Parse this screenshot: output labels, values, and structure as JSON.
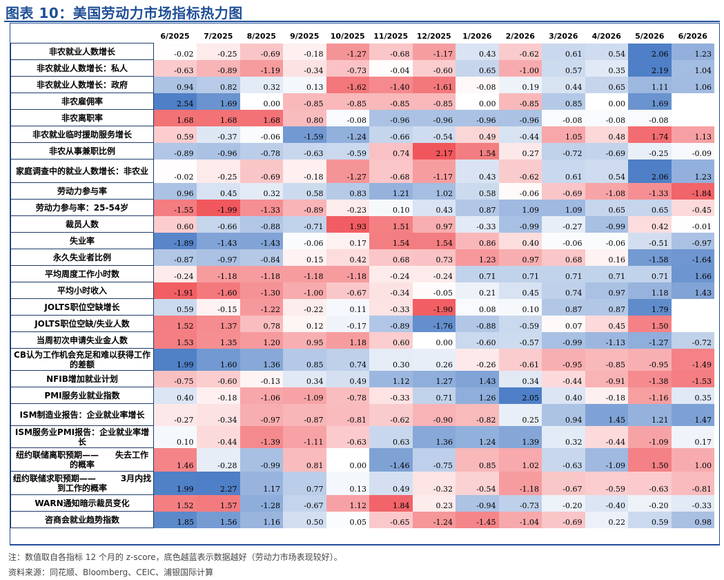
{
  "figure": {
    "title": "图表 10：美国劳动力市场指标热力图",
    "note": "注：数值取自各指标 12 个月的 z-score，底色越蓝表示数据越好（劳动力市场表现较好）。",
    "source": "资料来源：同花顺、Bloomberg、CEIC、浦银国际计算"
  },
  "colors": {
    "title": "#1f4e96",
    "good_blue": "#4f7fc6",
    "bad_red": "#f0575c",
    "neutral": "#ffffff"
  },
  "chart_data": {
    "type": "heatmap",
    "title": "美国劳动力市场指标热力图",
    "columns": [
      "6/2025",
      "7/2025",
      "8/2025",
      "9/2025",
      "10/2025",
      "11/2025",
      "12/2025",
      "1/2026",
      "2/2026",
      "3/2026",
      "4/2026",
      "5/2026",
      "6/2026"
    ],
    "rows": [
      {
        "label": "非农就业人数增长",
        "values": [
          "-0.02",
          "-0.25",
          "-0.69",
          "-0.18",
          "-1.27",
          "-0.68",
          "-1.17",
          "0.43",
          "-0.62",
          "0.61",
          "0.54",
          "2.06",
          "1.23"
        ],
        "invert": false
      },
      {
        "label": "非农就业人数增长：私人",
        "values": [
          "-0.63",
          "-0.89",
          "-1.19",
          "-0.34",
          "-0.73",
          "-0.04",
          "-0.60",
          "0.65",
          "-1.00",
          "0.57",
          "0.35",
          "2.19",
          "1.04"
        ],
        "invert": false
      },
      {
        "label": "非农就业人数增长：政府",
        "values": [
          "0.94",
          "0.82",
          "0.32",
          "0.13",
          "-1.62",
          "-1.40",
          "-1.61",
          "-0.08",
          "0.19",
          "0.44",
          "0.65",
          "1.11",
          "1.06"
        ],
        "invert": false
      },
      {
        "label": "非农雇佣率",
        "values": [
          "2.54",
          "1.69",
          "0.00",
          "-0.85",
          "-0.85",
          "-0.85",
          "-0.85",
          "0.00",
          "-0.85",
          "0.85",
          "0.00",
          "1.69",
          ""
        ],
        "invert": false
      },
      {
        "label": "非农离职率",
        "values": [
          "1.68",
          "1.68",
          "1.68",
          "0.80",
          "-0.08",
          "-0.96",
          "-0.96",
          "-0.96",
          "-0.96",
          "-0.08",
          "-0.08",
          "-0.08",
          ""
        ],
        "invert": true
      },
      {
        "label": "非农就业临时援助服务增长",
        "values": [
          "0.59",
          "-0.37",
          "-0.06",
          "-1.59",
          "-1.24",
          "-0.66",
          "-0.54",
          "0.49",
          "-0.44",
          "1.05",
          "0.48",
          "1.74",
          "1.13"
        ],
        "invert": true
      },
      {
        "label": "非农从事兼职比例",
        "values": [
          "-0.89",
          "-0.96",
          "-0.78",
          "-0.63",
          "-0.59",
          "0.74",
          "2.17",
          "1.54",
          "0.27",
          "-0.72",
          "-0.69",
          "-0.25",
          "-0.09"
        ],
        "invert": true
      },
      {
        "label": "家庭调查中的就业人数增长：非农业",
        "values": [
          "-0.02",
          "-0.25",
          "-0.69",
          "-0.18",
          "-1.27",
          "-0.68",
          "-1.17",
          "0.43",
          "-0.62",
          "0.61",
          "0.54",
          "2.06",
          "1.23"
        ],
        "invert": false
      },
      {
        "label": "劳动力参与率",
        "values": [
          "0.96",
          "0.45",
          "0.32",
          "0.58",
          "0.83",
          "1.21",
          "1.02",
          "0.58",
          "-0.06",
          "-0.69",
          "-1.08",
          "-1.33",
          "-1.84"
        ],
        "invert": false
      },
      {
        "label": "劳动力参与率：25-54岁",
        "values": [
          "-1.55",
          "-1.99",
          "-1.33",
          "-0.89",
          "-0.23",
          "0.10",
          "0.43",
          "0.87",
          "1.09",
          "1.09",
          "0.65",
          "0.65",
          "-0.45"
        ],
        "invert": false
      },
      {
        "label": "裁员人数",
        "values": [
          "0.60",
          "-0.66",
          "-0.88",
          "-0.71",
          "1.93",
          "1.51",
          "0.97",
          "-0.33",
          "-0.99",
          "-0.27",
          "-0.99",
          "0.42",
          "-0.01"
        ],
        "invert": true
      },
      {
        "label": "失业率",
        "values": [
          "-1.89",
          "-1.43",
          "-1.43",
          "-0.06",
          "0.17",
          "1.54",
          "1.54",
          "0.86",
          "0.40",
          "-0.06",
          "-0.06",
          "-0.51",
          "-0.97"
        ],
        "invert": true
      },
      {
        "label": "永久失业者比例",
        "values": [
          "-0.87",
          "-0.97",
          "-0.84",
          "0.15",
          "0.42",
          "0.68",
          "0.73",
          "1.23",
          "0.97",
          "0.68",
          "0.16",
          "-1.58",
          "-1.64"
        ],
        "invert": true
      },
      {
        "label": "平均周度工作小时数",
        "values": [
          "-0.24",
          "-1.18",
          "-1.18",
          "-1.18",
          "-1.18",
          "-0.24",
          "-0.24",
          "0.71",
          "0.71",
          "0.71",
          "0.71",
          "0.71",
          "1.66"
        ],
        "invert": false
      },
      {
        "label": "平均小时收入",
        "values": [
          "-1.91",
          "-1.60",
          "-1.30",
          "-1.00",
          "-0.67",
          "-0.34",
          "-0.05",
          "0.21",
          "0.45",
          "0.74",
          "0.97",
          "1.18",
          "1.43"
        ],
        "invert": false
      },
      {
        "label": "JOLTS职位空缺增长",
        "values": [
          "0.59",
          "-0.15",
          "-1.22",
          "-0.22",
          "0.11",
          "-0.33",
          "-1.90",
          "0.08",
          "0.10",
          "0.87",
          "0.87",
          "1.79",
          ""
        ],
        "invert": false
      },
      {
        "label": "JOLTS职位空缺/失业人数",
        "values": [
          "1.52",
          "1.37",
          "0.78",
          "0.12",
          "-0.17",
          "-0.89",
          "-1.76",
          "-0.88",
          "-0.59",
          "0.07",
          "0.45",
          "1.50",
          ""
        ],
        "invert": true
      },
      {
        "label": "当周初次申请失业金人数",
        "values": [
          "1.53",
          "1.35",
          "1.20",
          "0.95",
          "1.18",
          "0.60",
          "0.00",
          "-0.60",
          "-0.57",
          "-0.99",
          "-1.13",
          "-1.27",
          "-0.72"
        ],
        "invert": true
      },
      {
        "label": "CB认为工作机会充足和难以获得工作的差额",
        "values": [
          "1.99",
          "1.60",
          "1.36",
          "0.85",
          "0.74",
          "0.30",
          "0.26",
          "-0.26",
          "-0.61",
          "-0.95",
          "-0.85",
          "-0.95",
          "-1.49"
        ],
        "invert": false
      },
      {
        "label": "NFIB增加就业计划",
        "values": [
          "-0.75",
          "-0.60",
          "-0.13",
          "0.34",
          "0.49",
          "1.12",
          "1.27",
          "1.43",
          "0.34",
          "-0.44",
          "-0.91",
          "-1.38",
          "-1.53"
        ],
        "invert": false
      },
      {
        "label": "PMI服务业就业指数",
        "values": [
          "0.40",
          "-0.18",
          "-1.06",
          "-1.09",
          "-0.78",
          "-0.33",
          "0.71",
          "1.26",
          "2.05",
          "0.40",
          "-0.18",
          "-1.16",
          "0.35"
        ],
        "invert": false
      },
      {
        "label": "ISM制造业报告：企业就业率增长",
        "values": [
          "-0.27",
          "-0.34",
          "-0.97",
          "-0.87",
          "-0.81",
          "-0.62",
          "-0.90",
          "-0.82",
          "0.25",
          "0.94",
          "1.45",
          "1.21",
          "1.47"
        ],
        "invert": false
      },
      {
        "label": "ISM服务业PMI报告：企业就业率增长",
        "values": [
          "0.10",
          "-0.44",
          "-1.39",
          "-1.11",
          "-0.63",
          "0.63",
          "1.36",
          "1.24",
          "1.39",
          "0.32",
          "-0.44",
          "-1.09",
          "0.17"
        ],
        "invert": false
      },
      {
        "label": "纽约联储离职预期——　　失去工作的概率",
        "values": [
          "1.46",
          "-0.28",
          "-0.99",
          "0.81",
          "0.00",
          "-1.46",
          "-0.75",
          "0.85",
          "1.02",
          "-0.63",
          "-1.09",
          "1.50",
          "1.00"
        ],
        "invert": true
      },
      {
        "label": "纽约联储求职预期——　　　3月内找到工作的概率",
        "values": [
          "1.99",
          "2.27",
          "1.17",
          "0.77",
          "0.13",
          "0.49",
          "-0.32",
          "-0.54",
          "-1.18",
          "-0.67",
          "-0.59",
          "-0.63",
          "-0.81"
        ],
        "invert": false
      },
      {
        "label": "WARN通知暗示裁员变化",
        "values": [
          "1.52",
          "1.57",
          "-1.28",
          "-0.67",
          "1.12",
          "1.84",
          "0.23",
          "-0.94",
          "-0.73",
          "-0.20",
          "-0.40",
          "-0.20",
          "-0.33"
        ],
        "invert": true
      },
      {
        "label": "咨商会就业趋势指数",
        "values": [
          "1.85",
          "1.56",
          "1.16",
          "0.50",
          "0.05",
          "-0.65",
          "-1.24",
          "-1.45",
          "-1.04",
          "-0.69",
          "0.22",
          "0.59",
          "0.98"
        ],
        "invert": false
      }
    ]
  }
}
